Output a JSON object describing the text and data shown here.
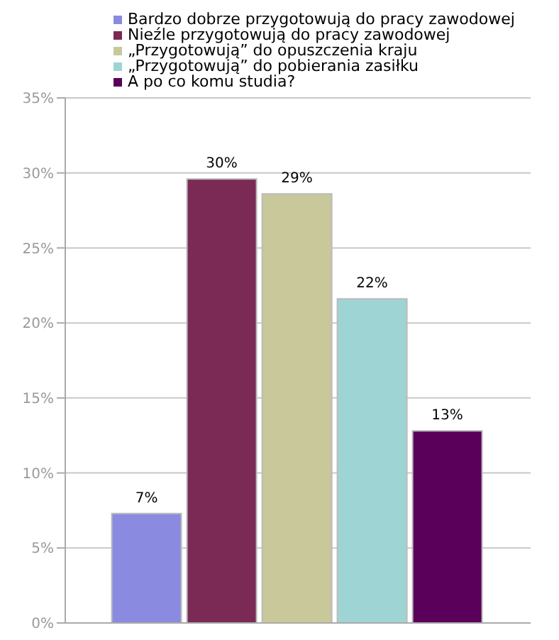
{
  "chart_data": {
    "type": "bar",
    "categories": [
      null
    ],
    "series": [
      {
        "name": "Bardzo dobrze przygotowują do pracy zawodowej",
        "color": "#8a8ae0",
        "values": [
          7.3
        ],
        "value_labels": [
          "7%"
        ]
      },
      {
        "name": "Nieźle przygotowują do pracy zawodowej",
        "color": "#7a2a55",
        "values": [
          29.6
        ],
        "value_labels": [
          "30%"
        ]
      },
      {
        "name": "„Przygotowują” do opuszczenia kraju",
        "color": "#c8c89a",
        "values": [
          28.6
        ],
        "value_labels": [
          "29%"
        ]
      },
      {
        "name": "„Przygotowują” do pobierania zasiłku",
        "color": "#9fd4d4",
        "values": [
          21.6
        ],
        "value_labels": [
          "22%"
        ]
      },
      {
        "name": "A po co komu studia?",
        "color": "#5a005a",
        "values": [
          12.8
        ],
        "value_labels": [
          "13%"
        ]
      }
    ],
    "ylim": [
      0,
      35
    ],
    "yticks": [
      {
        "value": 0,
        "label": "0%"
      },
      {
        "value": 5,
        "label": "5%"
      },
      {
        "value": 10,
        "label": "10%"
      },
      {
        "value": 15,
        "label": "15%"
      },
      {
        "value": 20,
        "label": "20%"
      },
      {
        "value": 25,
        "label": "25%"
      },
      {
        "value": 30,
        "label": "30%"
      },
      {
        "value": 35,
        "label": "35%"
      }
    ],
    "grid": "y",
    "legend": "top",
    "tick_labels": "y"
  }
}
